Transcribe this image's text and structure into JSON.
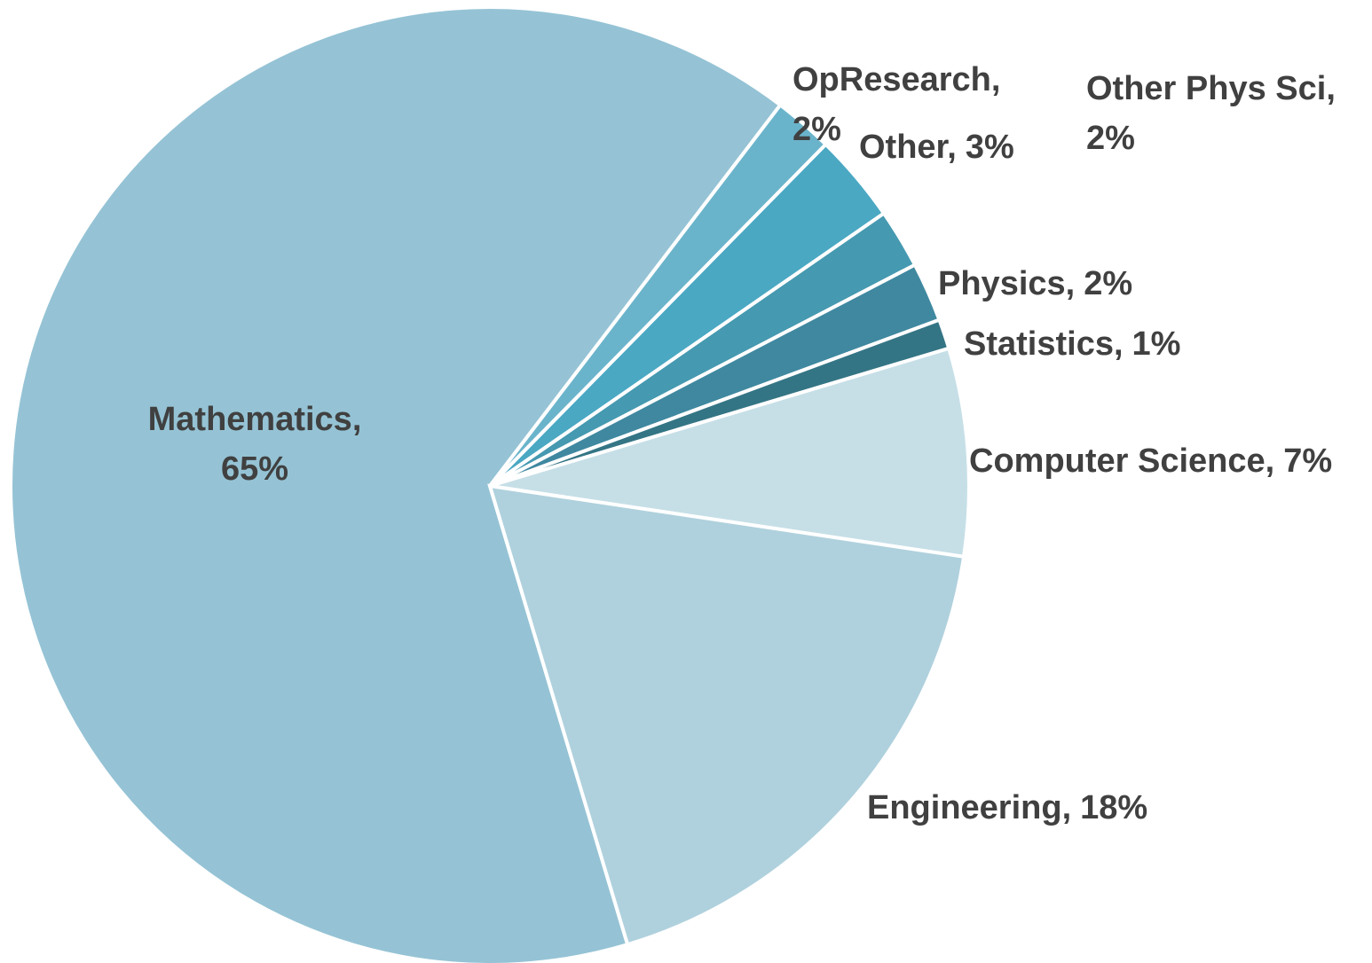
{
  "chart_data": {
    "type": "pie",
    "categories": [
      "Mathematics,",
      "OpResearch,",
      "Other,",
      "Other Phys Sci,",
      "Physics,",
      "Statistics,",
      "Computer Science,",
      "Engineering,"
    ],
    "values": [
      65,
      2,
      3,
      2,
      2,
      1,
      7,
      18
    ],
    "value_labels": [
      "65%",
      "2%",
      "3%",
      "2%",
      "2%",
      "1%",
      "7%",
      "18%"
    ],
    "colors": [
      "#95c3d5",
      "#6ab4cb",
      "#4aa8c3",
      "#4599b0",
      "#3f88a0",
      "#347585",
      "#c6dfe7",
      "#afd1dd"
    ]
  }
}
